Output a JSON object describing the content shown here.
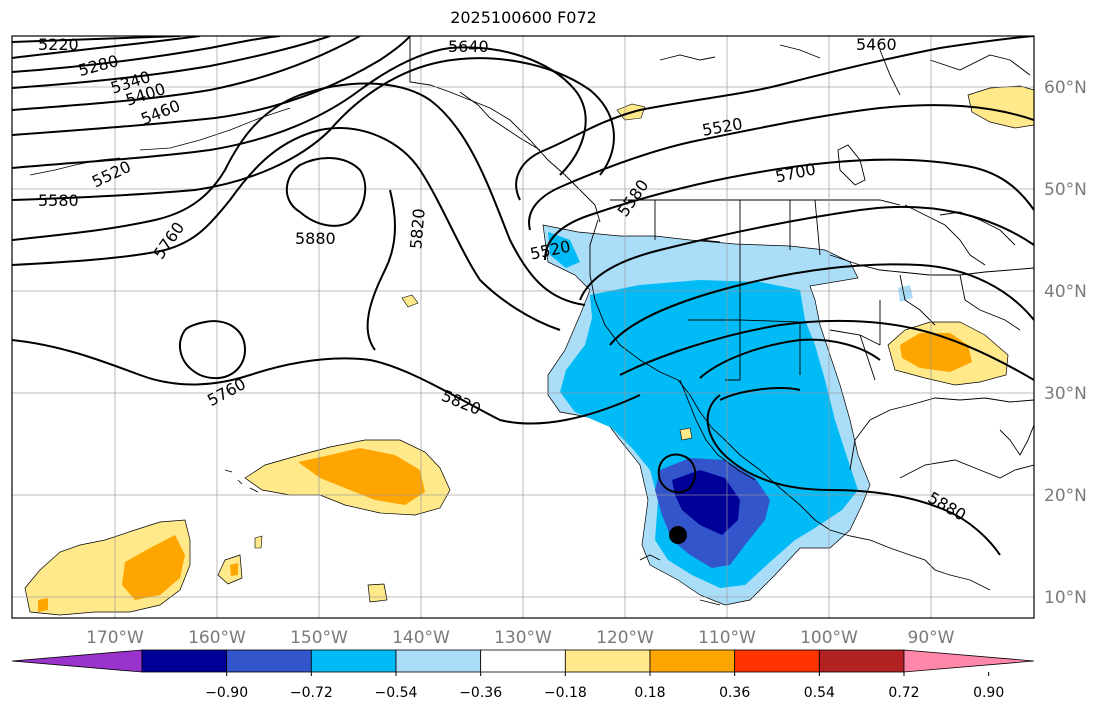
{
  "title": "2025100600 F072",
  "map": {
    "lon_labels": [
      "170°W",
      "160°W",
      "150°W",
      "140°W",
      "130°W",
      "120°W",
      "110°W",
      "100°W",
      "90°W"
    ],
    "lat_labels": [
      "60°N",
      "50°N",
      "40°N",
      "30°N",
      "20°N",
      "10°N"
    ],
    "contour_labels": [
      "5220",
      "5280",
      "5340",
      "5400",
      "5460",
      "5520",
      "5580",
      "5760",
      "5880",
      "5820",
      "5640",
      "5460",
      "5520",
      "5580",
      "5700",
      "5520",
      "5760",
      "5820",
      "5880"
    ],
    "contour_color": "#000000",
    "grid_color": "#999999"
  },
  "colorbar": {
    "colors": [
      "#9933cc",
      "#000099",
      "#3355cc",
      "#00bbf5",
      "#aaddf8",
      "#ffffff",
      "#ffe98a",
      "#ffa500",
      "#ff3300",
      "#b22222",
      "#ff88aa"
    ],
    "tick_labels": [
      "−0.90",
      "−0.72",
      "−0.54",
      "−0.36",
      "−0.18",
      "0.18",
      "0.36",
      "0.54",
      "0.72",
      "0.90"
    ]
  }
}
